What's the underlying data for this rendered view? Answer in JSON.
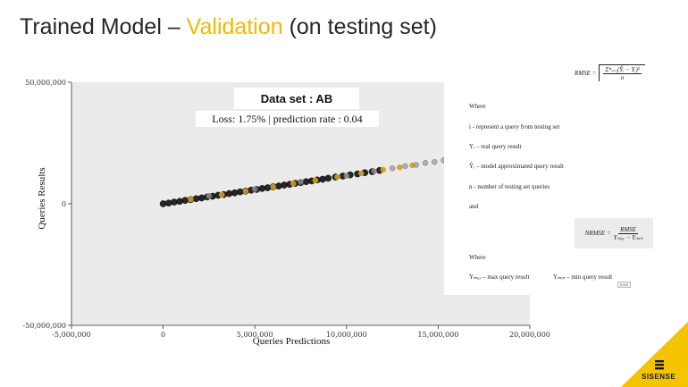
{
  "title": {
    "part1": "Trained Model – ",
    "highlight": "Validation",
    "part2": " (on testing set)",
    "highlight_color": "#f5b800"
  },
  "chart_data": {
    "type": "scatter",
    "xlabel": "Queries Predictions",
    "ylabel": "Queries Results",
    "xlim": [
      -5000000,
      20000000
    ],
    "ylim": [
      -50000000,
      50000000
    ],
    "x_ticks": [
      -5000000,
      0,
      5000000,
      10000000,
      15000000,
      20000000
    ],
    "x_tick_labels": [
      "-5,000,000",
      "0",
      "5,000,000",
      "10,000,000",
      "15,000,000",
      "20,000,000"
    ],
    "y_ticks": [
      -50000000,
      0,
      50000000
    ],
    "y_tick_labels": [
      "-50,000,000",
      "0",
      "50,000,000"
    ],
    "grid": false,
    "legend_title": "Data set : AB",
    "annotation": "Loss: 1.75% | prediction rate : 0.04",
    "series": [
      {
        "color": "#111111",
        "x": [
          0,
          300000,
          600000,
          900000,
          1200000,
          1500000,
          1800000,
          2100000,
          2400000,
          2700000,
          3000000,
          3300000,
          3600000,
          3900000,
          4200000,
          4500000,
          4800000,
          5100000,
          5400000,
          5700000,
          6000000,
          6300000,
          6600000,
          6900000,
          7200000,
          7500000,
          7800000,
          8100000,
          8400000,
          8700000,
          9000000,
          9400000,
          9800000,
          10200000,
          10600000,
          11000000,
          11400000,
          11800000
        ],
        "y": [
          0,
          300000,
          700000,
          1000000,
          1400000,
          1700000,
          2100000,
          2400000,
          2800000,
          3100000,
          3500000,
          3800000,
          4200000,
          4500000,
          4900000,
          5200000,
          5600000,
          5900000,
          6300000,
          6600000,
          7000000,
          7300000,
          7700000,
          8000000,
          8400000,
          8700000,
          9100000,
          9400000,
          9800000,
          10100000,
          10500000,
          11000000,
          11400000,
          11900000,
          12300000,
          12800000,
          13200000,
          13700000
        ]
      },
      {
        "color": "#d4a017",
        "x": [
          1500000,
          3200000,
          4500000,
          6000000,
          7100000,
          8300000,
          9500000,
          10800000,
          12000000,
          12900000,
          13600000
        ],
        "y": [
          1800000,
          3700000,
          5200000,
          7000000,
          8300000,
          9600000,
          11000000,
          12500000,
          14000000,
          15000000,
          15800000
        ]
      },
      {
        "color": "#9a9a9a",
        "x": [
          2500000,
          5000000,
          7500000,
          10000000,
          11500000,
          12500000,
          13200000,
          13800000,
          14300000,
          14800000,
          15300000,
          15800000,
          16200000
        ],
        "y": [
          3200000,
          6000000,
          9000000,
          11500000,
          13400000,
          14600000,
          15500000,
          16000000,
          16800000,
          17200000,
          17900000,
          18500000,
          18900000
        ]
      }
    ]
  },
  "formula_panel": {
    "rmse_lhs": "RMSE =",
    "rmse_numerator": "Σⁿᵢ₌₁(Ŷᵢ − Yᵢ)²",
    "rmse_denominator": "n",
    "where": "Where",
    "i_desc": "i - represent a query from testing set",
    "y_desc": "Yᵢ – real query result",
    "yhat_desc": "Ŷᵢ – model approximated query result",
    "n_desc": "n  - number of testing set queries",
    "and": "and",
    "nrmse_lhs": "NRMSE =",
    "nrmse_numerator": "RMSE",
    "nrmse_denominator": "Yₘₐₓ − Yₘᵢₙ",
    "where2": "Where",
    "ymax_desc": "Yₘₐₓ – max query result",
    "ymin_desc": "Yₘᵢₙ – min query result",
    "chip": "(Ctrl)"
  },
  "logo": {
    "text": "SISENSE",
    "color": "#f5c400"
  }
}
